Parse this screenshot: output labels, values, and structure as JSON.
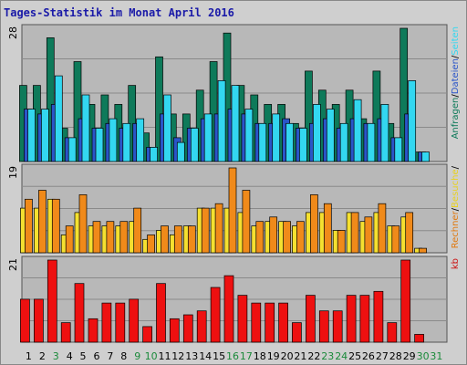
{
  "title": "Tages-Statistik im Monat April 2016",
  "chart_data": [
    {
      "type": "bar",
      "name": "panel-requests",
      "ymax_label": "28",
      "ylim": [
        0,
        28
      ],
      "categories": [
        "1",
        "2",
        "3",
        "4",
        "5",
        "6",
        "7",
        "8",
        "9",
        "10",
        "11",
        "12",
        "13",
        "14",
        "15",
        "16",
        "17",
        "18",
        "19",
        "20",
        "21",
        "22",
        "23",
        "24",
        "25",
        "26",
        "27",
        "28",
        "29",
        "30",
        "31"
      ],
      "series": [
        {
          "name": "Anfragen",
          "color": "#0e7a5a",
          "values": [
            16,
            16,
            26,
            7,
            21,
            12,
            14,
            12,
            16,
            6,
            22,
            10,
            10,
            15,
            21,
            27,
            16,
            14,
            12,
            12,
            8,
            19,
            15,
            12,
            15,
            9,
            19,
            8,
            28,
            2,
            null
          ]
        },
        {
          "name": "Dateien",
          "color": "#2a55c8",
          "values": [
            11,
            10,
            12,
            5,
            9,
            7,
            8,
            7,
            8,
            3,
            10,
            5,
            7,
            9,
            10,
            11,
            10,
            8,
            8,
            9,
            7,
            8,
            9,
            7,
            9,
            8,
            9,
            5,
            10,
            2,
            null
          ]
        },
        {
          "name": "Seiten",
          "color": "#33d7f0",
          "values": [
            11,
            11,
            18,
            5,
            14,
            7,
            9,
            8,
            9,
            3,
            14,
            4,
            7,
            10,
            17,
            16,
            11,
            8,
            10,
            8,
            7,
            12,
            11,
            8,
            13,
            8,
            12,
            5,
            17,
            2,
            null
          ]
        }
      ],
      "side_labels": [
        {
          "text": "Anfragen",
          "color": "#0e7a5a"
        },
        {
          "text": "/",
          "color": "#000000"
        },
        {
          "text": "Dateien",
          "color": "#2a55c8"
        },
        {
          "text": "/",
          "color": "#000000"
        },
        {
          "text": "Seiten",
          "color": "#33d7f0"
        }
      ]
    },
    {
      "type": "bar",
      "name": "panel-visits",
      "ymax_label": "19",
      "ylim": [
        0,
        19
      ],
      "categories": [
        "1",
        "2",
        "3",
        "4",
        "5",
        "6",
        "7",
        "8",
        "9",
        "10",
        "11",
        "12",
        "13",
        "14",
        "15",
        "16",
        "17",
        "18",
        "19",
        "20",
        "21",
        "22",
        "23",
        "24",
        "25",
        "26",
        "27",
        "28",
        "29",
        "30",
        "31"
      ],
      "series": [
        {
          "name": "Besuche",
          "color": "#f5e030",
          "values": [
            10,
            10,
            12,
            4,
            9,
            6,
            6,
            6,
            7,
            3,
            5,
            4,
            6,
            10,
            10,
            10,
            9,
            6,
            7,
            7,
            6,
            9,
            9,
            5,
            9,
            7,
            9,
            6,
            8,
            1,
            null
          ]
        },
        {
          "name": "Rechner",
          "color": "#f08a1a",
          "values": [
            12,
            14,
            12,
            6,
            13,
            7,
            7,
            7,
            10,
            4,
            6,
            6,
            6,
            10,
            11,
            19,
            14,
            7,
            8,
            7,
            7,
            13,
            11,
            5,
            9,
            8,
            11,
            6,
            9,
            1,
            null
          ]
        }
      ],
      "side_labels": [
        {
          "text": "Rechner",
          "color": "#e07a10"
        },
        {
          "text": "/",
          "color": "#000000"
        },
        {
          "text": "Besuche",
          "color": "#e8d020"
        },
        {
          "text": "/",
          "color": "#000000"
        }
      ]
    },
    {
      "type": "bar",
      "name": "panel-kb",
      "ymax_label": "21",
      "ylim": [
        0,
        21
      ],
      "categories": [
        "1",
        "2",
        "3",
        "4",
        "5",
        "6",
        "7",
        "8",
        "9",
        "10",
        "11",
        "12",
        "13",
        "14",
        "15",
        "16",
        "17",
        "18",
        "19",
        "20",
        "21",
        "22",
        "23",
        "24",
        "25",
        "26",
        "27",
        "28",
        "29",
        "30",
        "31"
      ],
      "series": [
        {
          "name": "kb",
          "color": "#ee1010",
          "values": [
            11,
            11,
            21,
            5,
            15,
            6,
            10,
            10,
            11,
            4,
            15,
            6,
            7,
            8,
            14,
            17,
            12,
            10,
            10,
            10,
            5,
            12,
            8,
            8,
            12,
            12,
            13,
            5,
            21,
            2,
            null
          ]
        }
      ],
      "side_labels": [
        {
          "text": "kb",
          "color": "#cc1010"
        }
      ]
    }
  ],
  "day_labels": [
    {
      "text": "1",
      "weekend": false
    },
    {
      "text": "2",
      "weekend": false
    },
    {
      "text": "3",
      "weekend": true
    },
    {
      "text": "4",
      "weekend": false
    },
    {
      "text": "5",
      "weekend": false
    },
    {
      "text": "6",
      "weekend": false
    },
    {
      "text": "7",
      "weekend": false
    },
    {
      "text": "8",
      "weekend": false
    },
    {
      "text": "9",
      "weekend": true
    },
    {
      "text": "10",
      "weekend": true
    },
    {
      "text": "11",
      "weekend": false
    },
    {
      "text": "12",
      "weekend": false
    },
    {
      "text": "13",
      "weekend": false
    },
    {
      "text": "14",
      "weekend": false
    },
    {
      "text": "15",
      "weekend": false
    },
    {
      "text": "16",
      "weekend": true
    },
    {
      "text": "17",
      "weekend": true
    },
    {
      "text": "18",
      "weekend": false
    },
    {
      "text": "19",
      "weekend": false
    },
    {
      "text": "20",
      "weekend": false
    },
    {
      "text": "21",
      "weekend": false
    },
    {
      "text": "22",
      "weekend": false
    },
    {
      "text": "23",
      "weekend": true
    },
    {
      "text": "24",
      "weekend": true
    },
    {
      "text": "25",
      "weekend": false
    },
    {
      "text": "26",
      "weekend": false
    },
    {
      "text": "27",
      "weekend": false
    },
    {
      "text": "28",
      "weekend": false
    },
    {
      "text": "29",
      "weekend": false
    },
    {
      "text": "30",
      "weekend": true
    },
    {
      "text": "31",
      "weekend": true
    }
  ],
  "colors": {
    "weekday_label": "#000000",
    "weekend_label": "#1a8a3a",
    "panel_bg": "#b8b8b8",
    "gridline": "#8a8a8a"
  }
}
